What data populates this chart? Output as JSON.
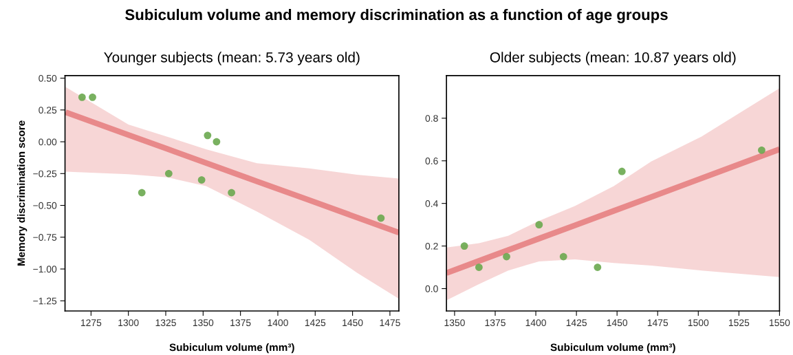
{
  "chart_data": [
    {
      "type": "scatter",
      "title": "Subiculum volume and memory discrimination as a function of age groups",
      "subtitle": "Younger subjects (mean: 5.73 years old)",
      "xlabel": "Subiculum volume (mm³)",
      "ylabel": "Memory discrimination score",
      "grid": false,
      "series": [
        {
          "marker": "circle",
          "color": "#6aa84f",
          "x": [
            1269,
            1276,
            1309,
            1327,
            1349,
            1353,
            1359,
            1369,
            1469
          ],
          "values": [
            0.35,
            0.35,
            -0.4,
            -0.25,
            -0.3,
            0.05,
            0.0,
            -0.4,
            -0.6
          ]
        },
        {
          "type": "line",
          "color": "#e8898a",
          "x": [
            1258,
            1300,
            1326,
            1352,
            1386,
            1421,
            1453,
            1481
          ],
          "values": [
            0.232,
            0.054,
            -0.056,
            -0.167,
            -0.311,
            -0.459,
            -0.595,
            -0.714
          ],
          "upper": [
            0.43,
            0.136,
            0.04,
            -0.059,
            -0.169,
            -0.209,
            -0.259,
            -0.289
          ],
          "lower": [
            -0.235,
            -0.255,
            -0.279,
            -0.349,
            -0.549,
            -0.77,
            -1.03,
            -1.234
          ]
        }
      ],
      "xlim": [
        1257.6,
        1481
      ],
      "xticks": [
        1275,
        1300,
        1325,
        1350,
        1375,
        1400,
        1425,
        1450,
        1475
      ],
      "ylim": [
        -1.33,
        0.52
      ],
      "yticks": [
        {
          "value": -1.25,
          "label": "−1.25"
        },
        {
          "value": -1.0,
          "label": "−1.00"
        },
        {
          "value": -0.75,
          "label": "−0.75"
        },
        {
          "value": -0.5,
          "label": "−0.50"
        },
        {
          "value": -0.25,
          "label": "−0.25"
        },
        {
          "value": 0,
          "label": "0.00"
        },
        {
          "value": 0.25,
          "label": "0.25"
        },
        {
          "value": 0.5,
          "label": "0.50"
        }
      ]
    },
    {
      "type": "scatter",
      "subtitle": "Older subjects (mean: 10.87 years old)",
      "xlabel": "Subiculum volume (mm³)",
      "grid": false,
      "series": [
        {
          "marker": "circle",
          "color": "#6aa84f",
          "x": [
            1356,
            1365,
            1382,
            1402,
            1417,
            1438,
            1453,
            1539
          ],
          "values": [
            0.2,
            0.1,
            0.15,
            0.3,
            0.15,
            0.1,
            0.55,
            0.65
          ]
        },
        {
          "type": "line",
          "color": "#e8898a",
          "x": [
            1345,
            1365,
            1383,
            1402,
            1424,
            1448,
            1471,
            1502,
            1550
          ],
          "values": [
            0.073,
            0.13,
            0.181,
            0.235,
            0.297,
            0.365,
            0.43,
            0.518,
            0.654
          ],
          "upper": [
            0.193,
            0.213,
            0.248,
            0.318,
            0.388,
            0.481,
            0.597,
            0.714,
            0.941
          ],
          "lower": [
            -0.055,
            0.021,
            0.085,
            0.128,
            0.137,
            0.12,
            0.108,
            0.085,
            0.054
          ]
        }
      ],
      "xlim": [
        1345,
        1550
      ],
      "xticks": [
        1350,
        1375,
        1400,
        1425,
        1450,
        1475,
        1500,
        1525,
        1550
      ],
      "ylim": [
        -0.105,
        1.0
      ],
      "yticks": [
        {
          "value": 0,
          "label": "0.0"
        },
        {
          "value": 0.2,
          "label": "0.2"
        },
        {
          "value": 0.4,
          "label": "0.4"
        },
        {
          "value": 0.6,
          "label": "0.6"
        },
        {
          "value": 0.8,
          "label": "0.8"
        }
      ]
    }
  ]
}
